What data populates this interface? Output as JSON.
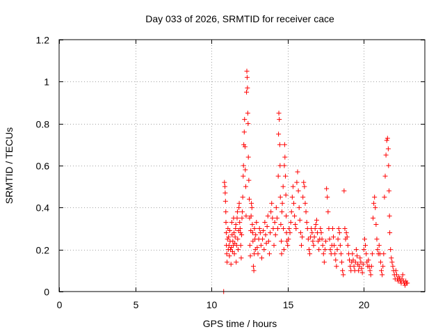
{
  "chart_data": {
    "type": "scatter",
    "title": "Day 033 of 2026, SRMTID for receiver cace",
    "xlabel": "GPS time / hours",
    "ylabel": "SRMTID / TECUs",
    "xlim": [
      0,
      24
    ],
    "ylim": [
      0,
      1.2
    ],
    "x_ticks": [
      0,
      5,
      10,
      15,
      20
    ],
    "x_tick_labels": [
      "0",
      "5",
      "10",
      "15",
      "20"
    ],
    "y_ticks": [
      0,
      0.2,
      0.4,
      0.6,
      0.8,
      1.0,
      1.2
    ],
    "y_tick_labels": [
      "0",
      "0.2",
      "0.4",
      "0.6",
      "0.8",
      "1",
      "1.2"
    ],
    "grid": true,
    "marker": "+",
    "colors": {
      "series": "#ff0000",
      "axis": "#000000",
      "grid": "#a0a0a0",
      "background": "#ffffff"
    },
    "series": [
      {
        "name": "SRMTID",
        "points": [
          [
            10.8,
            0.0
          ],
          [
            10.85,
            0.52
          ],
          [
            10.88,
            0.5
          ],
          [
            10.9,
            0.47
          ],
          [
            10.92,
            0.43
          ],
          [
            10.94,
            0.38
          ],
          [
            10.95,
            0.33
          ],
          [
            10.97,
            0.28
          ],
          [
            10.98,
            0.22
          ],
          [
            11.0,
            0.18
          ],
          [
            11.02,
            0.14
          ],
          [
            11.05,
            0.25
          ],
          [
            11.08,
            0.3
          ],
          [
            11.1,
            0.2
          ],
          [
            11.12,
            0.26
          ],
          [
            11.15,
            0.22
          ],
          [
            11.18,
            0.17
          ],
          [
            11.2,
            0.29
          ],
          [
            11.22,
            0.24
          ],
          [
            11.25,
            0.2
          ],
          [
            11.28,
            0.13
          ],
          [
            11.3,
            0.21
          ],
          [
            11.33,
            0.33
          ],
          [
            11.35,
            0.27
          ],
          [
            11.38,
            0.19
          ],
          [
            11.4,
            0.24
          ],
          [
            11.43,
            0.22
          ],
          [
            11.45,
            0.35
          ],
          [
            11.48,
            0.28
          ],
          [
            11.5,
            0.18
          ],
          [
            11.53,
            0.23
          ],
          [
            11.55,
            0.26
          ],
          [
            11.58,
            0.3
          ],
          [
            11.6,
            0.32
          ],
          [
            11.62,
            0.14
          ],
          [
            11.65,
            0.22
          ],
          [
            11.68,
            0.35
          ],
          [
            11.7,
            0.38
          ],
          [
            11.72,
            0.25
          ],
          [
            11.75,
            0.2
          ],
          [
            11.78,
            0.29
          ],
          [
            11.8,
            0.4
          ],
          [
            11.82,
            0.42
          ],
          [
            11.85,
            0.33
          ],
          [
            11.88,
            0.3
          ],
          [
            11.9,
            0.28
          ],
          [
            11.92,
            0.22
          ],
          [
            11.95,
            0.16
          ],
          [
            11.98,
            0.27
          ],
          [
            12.0,
            0.35
          ],
          [
            12.02,
            0.38
          ],
          [
            12.05,
            0.45
          ],
          [
            12.08,
            0.55
          ],
          [
            12.1,
            0.6
          ],
          [
            12.12,
            0.7
          ],
          [
            12.15,
            0.76
          ],
          [
            12.17,
            0.82
          ],
          [
            12.2,
            0.69
          ],
          [
            12.22,
            0.58
          ],
          [
            12.25,
            0.5
          ],
          [
            12.27,
            0.36
          ],
          [
            12.3,
            0.95
          ],
          [
            12.32,
            1.05
          ],
          [
            12.34,
            1.02
          ],
          [
            12.36,
            0.97
          ],
          [
            12.38,
            0.85
          ],
          [
            12.4,
            0.8
          ],
          [
            12.42,
            0.64
          ],
          [
            12.45,
            0.53
          ],
          [
            12.48,
            0.44
          ],
          [
            12.5,
            0.35
          ],
          [
            12.52,
            0.22
          ],
          [
            12.55,
            0.17
          ],
          [
            12.58,
            0.29
          ],
          [
            12.6,
            0.36
          ],
          [
            12.62,
            0.42
          ],
          [
            12.65,
            0.4
          ],
          [
            12.68,
            0.32
          ],
          [
            12.7,
            0.28
          ],
          [
            12.72,
            0.24
          ],
          [
            12.75,
            0.12
          ],
          [
            12.78,
            0.1
          ],
          [
            12.8,
            0.18
          ],
          [
            12.82,
            0.3
          ],
          [
            12.85,
            0.25
          ],
          [
            12.88,
            0.2
          ],
          [
            12.9,
            0.27
          ],
          [
            12.95,
            0.33
          ],
          [
            13.0,
            0.21
          ],
          [
            13.05,
            0.18
          ],
          [
            13.1,
            0.25
          ],
          [
            13.15,
            0.3
          ],
          [
            13.2,
            0.28
          ],
          [
            13.25,
            0.22
          ],
          [
            13.3,
            0.16
          ],
          [
            13.35,
            0.25
          ],
          [
            13.4,
            0.29
          ],
          [
            13.45,
            0.2
          ],
          [
            13.5,
            0.33
          ],
          [
            13.55,
            0.27
          ],
          [
            13.6,
            0.23
          ],
          [
            13.65,
            0.31
          ],
          [
            13.7,
            0.36
          ],
          [
            13.75,
            0.24
          ],
          [
            13.8,
            0.18
          ],
          [
            13.85,
            0.28
          ],
          [
            13.9,
            0.38
          ],
          [
            13.95,
            0.42
          ],
          [
            14.0,
            0.35
          ],
          [
            14.05,
            0.3
          ],
          [
            14.1,
            0.22
          ],
          [
            14.15,
            0.33
          ],
          [
            14.2,
            0.27
          ],
          [
            14.25,
            0.4
          ],
          [
            14.3,
            0.35
          ],
          [
            14.35,
            0.3
          ],
          [
            14.38,
            0.55
          ],
          [
            14.4,
            0.75
          ],
          [
            14.42,
            0.85
          ],
          [
            14.45,
            0.82
          ],
          [
            14.48,
            0.7
          ],
          [
            14.5,
            0.6
          ],
          [
            14.52,
            0.45
          ],
          [
            14.55,
            0.32
          ],
          [
            14.58,
            0.24
          ],
          [
            14.6,
            0.18
          ],
          [
            14.62,
            0.38
          ],
          [
            14.65,
            0.42
          ],
          [
            14.7,
            0.5
          ],
          [
            14.72,
            0.3
          ],
          [
            14.75,
            0.2
          ],
          [
            14.78,
            0.6
          ],
          [
            14.8,
            0.7
          ],
          [
            14.82,
            0.64
          ],
          [
            14.85,
            0.55
          ],
          [
            14.88,
            0.46
          ],
          [
            14.9,
            0.36
          ],
          [
            14.92,
            0.28
          ],
          [
            14.95,
            0.24
          ],
          [
            15.0,
            0.22
          ],
          [
            15.05,
            0.25
          ],
          [
            15.1,
            0.3
          ],
          [
            15.15,
            0.28
          ],
          [
            15.2,
            0.33
          ],
          [
            15.25,
            0.38
          ],
          [
            15.3,
            0.45
          ],
          [
            15.35,
            0.5
          ],
          [
            15.4,
            0.42
          ],
          [
            15.45,
            0.36
          ],
          [
            15.5,
            0.32
          ],
          [
            15.55,
            0.3
          ],
          [
            15.6,
            0.52
          ],
          [
            15.65,
            0.57
          ],
          [
            15.7,
            0.48
          ],
          [
            15.75,
            0.4
          ],
          [
            15.8,
            0.34
          ],
          [
            15.85,
            0.28
          ],
          [
            15.9,
            0.22
          ],
          [
            15.95,
            0.26
          ],
          [
            16.0,
            0.45
          ],
          [
            16.05,
            0.52
          ],
          [
            16.1,
            0.5
          ],
          [
            16.15,
            0.42
          ],
          [
            16.2,
            0.38
          ],
          [
            16.25,
            0.33
          ],
          [
            16.3,
            0.3
          ],
          [
            16.35,
            0.25
          ],
          [
            16.4,
            0.2
          ],
          [
            16.45,
            0.18
          ],
          [
            16.5,
            0.26
          ],
          [
            16.55,
            0.3
          ],
          [
            16.6,
            0.28
          ],
          [
            16.65,
            0.24
          ],
          [
            16.7,
            0.22
          ],
          [
            16.75,
            0.26
          ],
          [
            16.8,
            0.3
          ],
          [
            16.85,
            0.32
          ],
          [
            16.9,
            0.34
          ],
          [
            16.95,
            0.28
          ],
          [
            17.0,
            0.24
          ],
          [
            17.05,
            0.2
          ],
          [
            17.1,
            0.25
          ],
          [
            17.15,
            0.3
          ],
          [
            17.2,
            0.28
          ],
          [
            17.25,
            0.25
          ],
          [
            17.3,
            0.22
          ],
          [
            17.35,
            0.18
          ],
          [
            17.4,
            0.14
          ],
          [
            17.45,
            0.2
          ],
          [
            17.5,
            0.24
          ],
          [
            17.55,
            0.49
          ],
          [
            17.6,
            0.45
          ],
          [
            17.65,
            0.38
          ],
          [
            17.7,
            0.3
          ],
          [
            17.75,
            0.25
          ],
          [
            17.8,
            0.2
          ],
          [
            17.85,
            0.18
          ],
          [
            17.9,
            0.22
          ],
          [
            17.95,
            0.3
          ],
          [
            18.0,
            0.26
          ],
          [
            18.05,
            0.22
          ],
          [
            18.1,
            0.18
          ],
          [
            18.15,
            0.15
          ],
          [
            18.2,
            0.12
          ],
          [
            18.25,
            0.2
          ],
          [
            18.3,
            0.25
          ],
          [
            18.35,
            0.3
          ],
          [
            18.4,
            0.28
          ],
          [
            18.45,
            0.22
          ],
          [
            18.5,
            0.18
          ],
          [
            18.55,
            0.14
          ],
          [
            18.6,
            0.1
          ],
          [
            18.65,
            0.08
          ],
          [
            18.7,
            0.48
          ],
          [
            18.75,
            0.3
          ],
          [
            18.8,
            0.25
          ],
          [
            18.85,
            0.28
          ],
          [
            18.9,
            0.26
          ],
          [
            18.95,
            0.22
          ],
          [
            19.0,
            0.18
          ],
          [
            19.05,
            0.15
          ],
          [
            19.1,
            0.12
          ],
          [
            19.15,
            0.1
          ],
          [
            19.2,
            0.14
          ],
          [
            19.25,
            0.18
          ],
          [
            19.3,
            0.15
          ],
          [
            19.35,
            0.12
          ],
          [
            19.4,
            0.1
          ],
          [
            19.45,
            0.14
          ],
          [
            19.5,
            0.2
          ],
          [
            19.55,
            0.17
          ],
          [
            19.6,
            0.13
          ],
          [
            19.65,
            0.1
          ],
          [
            19.7,
            0.12
          ],
          [
            19.75,
            0.16
          ],
          [
            19.8,
            0.14
          ],
          [
            19.85,
            0.11
          ],
          [
            19.9,
            0.09
          ],
          [
            19.95,
            0.13
          ],
          [
            20.0,
            0.2
          ],
          [
            20.05,
            0.25
          ],
          [
            20.1,
            0.22
          ],
          [
            20.15,
            0.18
          ],
          [
            20.2,
            0.14
          ],
          [
            20.25,
            0.12
          ],
          [
            20.3,
            0.15
          ],
          [
            20.35,
            0.12
          ],
          [
            20.4,
            0.1
          ],
          [
            20.45,
            0.08
          ],
          [
            20.5,
            0.12
          ],
          [
            20.55,
            0.18
          ],
          [
            20.6,
            0.35
          ],
          [
            20.65,
            0.42
          ],
          [
            20.7,
            0.45
          ],
          [
            20.75,
            0.4
          ],
          [
            20.8,
            0.32
          ],
          [
            20.85,
            0.25
          ],
          [
            20.9,
            0.2
          ],
          [
            20.95,
            0.18
          ],
          [
            21.0,
            0.22
          ],
          [
            21.05,
            0.18
          ],
          [
            21.1,
            0.14
          ],
          [
            21.15,
            0.1
          ],
          [
            21.2,
            0.08
          ],
          [
            21.25,
            0.12
          ],
          [
            21.3,
            0.18
          ],
          [
            21.35,
            0.45
          ],
          [
            21.4,
            0.55
          ],
          [
            21.45,
            0.65
          ],
          [
            21.5,
            0.72
          ],
          [
            21.55,
            0.73
          ],
          [
            21.6,
            0.68
          ],
          [
            21.62,
            0.6
          ],
          [
            21.65,
            0.48
          ],
          [
            21.68,
            0.36
          ],
          [
            21.7,
            0.28
          ],
          [
            21.75,
            0.2
          ],
          [
            21.8,
            0.16
          ],
          [
            21.85,
            0.14
          ],
          [
            21.9,
            0.12
          ],
          [
            21.95,
            0.1
          ],
          [
            22.0,
            0.08
          ],
          [
            22.05,
            0.06
          ],
          [
            22.1,
            0.1
          ],
          [
            22.15,
            0.08
          ],
          [
            22.2,
            0.06
          ],
          [
            22.25,
            0.05
          ],
          [
            22.3,
            0.07
          ],
          [
            22.35,
            0.06
          ],
          [
            22.4,
            0.05
          ],
          [
            22.45,
            0.04
          ],
          [
            22.5,
            0.06
          ],
          [
            22.55,
            0.08
          ],
          [
            22.6,
            0.05
          ],
          [
            22.65,
            0.04
          ],
          [
            22.7,
            0.03
          ],
          [
            22.75,
            0.05
          ],
          [
            22.8,
            0.04
          ],
          [
            22.85,
            0.04
          ]
        ]
      }
    ]
  }
}
